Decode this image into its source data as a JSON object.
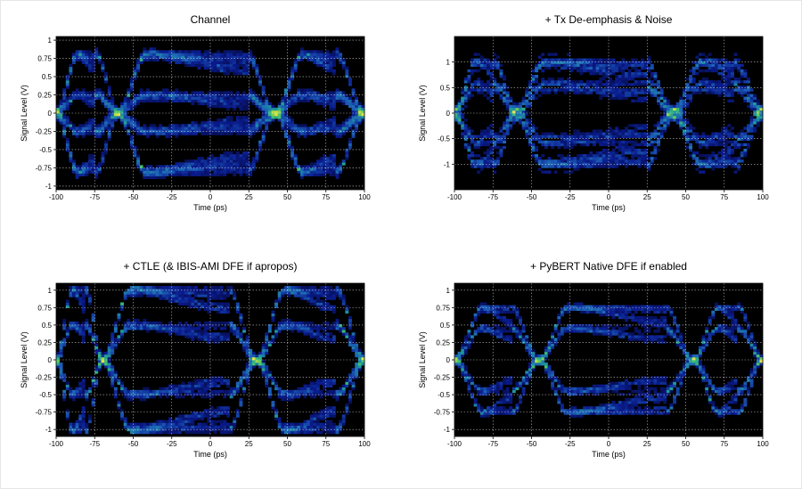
{
  "chart_data": [
    {
      "type": "heatmap",
      "title": "Channel",
      "xlabel": "Time (ps)",
      "ylabel": "Signal Level (V)",
      "xlim": [
        -100,
        100
      ],
      "ylim": [
        -1.05,
        1.05
      ],
      "xticks": [
        -100,
        -75,
        -50,
        -25,
        0,
        25,
        50,
        75,
        100
      ],
      "yticks": [
        -1,
        -0.75,
        -0.5,
        -0.25,
        0,
        0.25,
        0.5,
        0.75,
        1
      ],
      "ytick_labels": [
        "-1",
        "-0.75",
        "-0.5",
        "-0.25",
        "0",
        "0.25",
        "0.5",
        "0.75",
        "1"
      ],
      "grid": true,
      "colormap": [
        "#000000",
        "#0a1a8c",
        "#1d62b8",
        "#1f9a9a",
        "#43c46a",
        "#b6e03a",
        "#ffe04a"
      ],
      "eye": {
        "levels": [
          -0.8,
          -0.25,
          0.25,
          0.8
        ],
        "crossings": [
          -100,
          -60,
          42,
          100
        ],
        "crossing_level": 0,
        "jitter": 0.2,
        "spread": 0.07,
        "opening": 0.1
      }
    },
    {
      "type": "heatmap",
      "title": "+ Tx De-emphasis & Noise",
      "xlabel": "Time (ps)",
      "ylabel": "Signal Level (V)",
      "xlim": [
        -100,
        100
      ],
      "ylim": [
        -1.5,
        1.5
      ],
      "xticks": [
        -100,
        -75,
        -50,
        -25,
        0,
        25,
        50,
        75,
        100
      ],
      "yticks": [
        -1,
        -0.5,
        0,
        0.5,
        1
      ],
      "ytick_labels": [
        "-1",
        "-0.5",
        "0",
        "0.5",
        "1"
      ],
      "grid": true,
      "colormap": [
        "#000000",
        "#0a1a8c",
        "#1d62b8",
        "#1f9a9a",
        "#43c46a",
        "#b6e03a",
        "#ffe04a"
      ],
      "eye": {
        "levels": [
          -1.0,
          -0.55,
          0.55,
          1.0
        ],
        "crossings": [
          -100,
          -60,
          42,
          100
        ],
        "crossing_level": 0,
        "jitter": 0.15,
        "spread": 0.14,
        "opening": 0.25
      }
    },
    {
      "type": "heatmap",
      "title": "+ CTLE (& IBIS-AMI DFE if apropos)",
      "xlabel": "Time (ps)",
      "ylabel": "Signal Level (V)",
      "xlim": [
        -100,
        100
      ],
      "ylim": [
        -1.1,
        1.1
      ],
      "xticks": [
        -100,
        -75,
        -50,
        -25,
        0,
        25,
        50,
        75,
        100
      ],
      "yticks": [
        -1,
        -0.75,
        -0.5,
        -0.25,
        0,
        0.25,
        0.5,
        0.75,
        1
      ],
      "ytick_labels": [
        "-1",
        "-0.75",
        "-0.5",
        "-0.25",
        "0",
        "0.25",
        "0.5",
        "0.75",
        "1"
      ],
      "grid": true,
      "colormap": [
        "#000000",
        "#0a1a8c",
        "#1d62b8",
        "#1f9a9a",
        "#43c46a",
        "#b6e03a",
        "#ffe04a"
      ],
      "eye": {
        "levels": [
          -1.0,
          -0.5,
          0.5,
          1.0
        ],
        "crossings": [
          -100,
          -70,
          30,
          100
        ],
        "crossing_level": 0,
        "jitter": 0.1,
        "spread": 0.06,
        "opening": 0.3
      }
    },
    {
      "type": "heatmap",
      "title": "+ PyBERT Native DFE if enabled",
      "xlabel": "Time (ps)",
      "ylabel": "Signal Level (V)",
      "xlim": [
        -100,
        100
      ],
      "ylim": [
        -1.1,
        1.1
      ],
      "xticks": [
        -100,
        -75,
        -50,
        -25,
        0,
        25,
        50,
        75,
        100
      ],
      "yticks": [
        -1,
        -0.75,
        -0.5,
        -0.25,
        0,
        0.25,
        0.5,
        0.75,
        1
      ],
      "ytick_labels": [
        "-1",
        "-0.75",
        "-0.5",
        "-0.25",
        "0",
        "0.25",
        "0.5",
        "0.75",
        "1"
      ],
      "grid": true,
      "colormap": [
        "#000000",
        "#0a1a8c",
        "#1d62b8",
        "#1f9a9a",
        "#43c46a",
        "#b6e03a",
        "#ffe04a"
      ],
      "eye": {
        "levels": [
          -0.75,
          -0.45,
          0.45,
          0.75
        ],
        "crossings": [
          -100,
          -45,
          55,
          100
        ],
        "crossing_level": 0,
        "jitter": 0.1,
        "spread": 0.05,
        "opening": 0.35
      }
    }
  ]
}
